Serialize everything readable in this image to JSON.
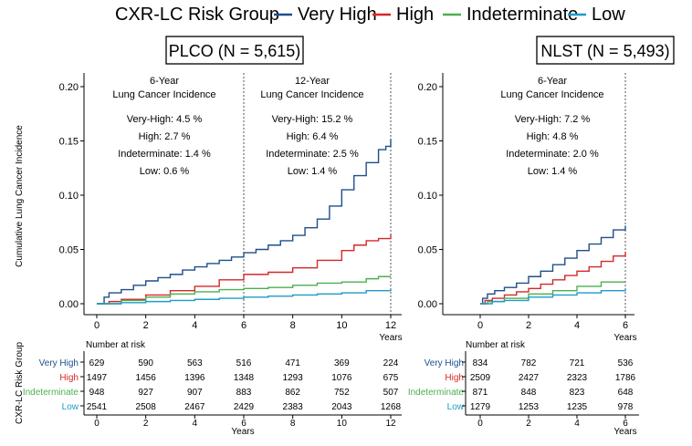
{
  "legend": {
    "title": "CXR-LC Risk Group",
    "items": [
      {
        "label": "Very High",
        "color": "#1f4e8c"
      },
      {
        "label": "High",
        "color": "#d62728"
      },
      {
        "label": "Indeterminate",
        "color": "#4caf50"
      },
      {
        "label": "Low",
        "color": "#1f9bc8"
      }
    ]
  },
  "y_axis_label": "Cumulative Lung Cancer Incidence",
  "risk_axis_label": "CXR-LC Risk Group",
  "number_at_risk_label": "Number at risk",
  "years_label": "Years",
  "panels": [
    {
      "title": "PLCO (N = 5,615)",
      "annotations": [
        {
          "header": [
            "6-Year",
            "Lung Cancer Incidence"
          ],
          "lines": [
            "Very-High: 4.5 %",
            "High: 2.7 %",
            "Indeterminate: 1.4 %",
            "Low: 0.6 %"
          ]
        },
        {
          "header": [
            "12-Year",
            "Lung Cancer Incidence"
          ],
          "lines": [
            "Very-High: 15.2 %",
            "High: 6.4 %",
            "Indeterminate: 2.5 %",
            "Low: 1.4 %"
          ]
        }
      ],
      "risk_table": {
        "times": [
          0,
          2,
          4,
          6,
          8,
          10,
          12
        ],
        "rows": [
          {
            "group": "Very High",
            "counts": [
              629,
              590,
              563,
              516,
              471,
              369,
              224
            ]
          },
          {
            "group": "High",
            "counts": [
              1497,
              1456,
              1396,
              1348,
              1293,
              1076,
              675
            ]
          },
          {
            "group": "Indeterminate",
            "counts": [
              948,
              927,
              907,
              883,
              862,
              752,
              507
            ]
          },
          {
            "group": "Low",
            "counts": [
              2541,
              2508,
              2467,
              2429,
              2383,
              2043,
              1268
            ]
          }
        ]
      }
    },
    {
      "title": "NLST (N = 5,493)",
      "annotations": [
        {
          "header": [
            "6-Year",
            "Lung Cancer Incidence"
          ],
          "lines": [
            "Very-High: 7.2 %",
            "High: 4.8 %",
            "Indeterminate: 2.0 %",
            "Low: 1.4 %"
          ]
        }
      ],
      "risk_table": {
        "times": [
          0,
          2,
          4,
          6
        ],
        "rows": [
          {
            "group": "Very High",
            "counts": [
              834,
              782,
              721,
              536
            ]
          },
          {
            "group": "High",
            "counts": [
              2509,
              2427,
              2323,
              1786
            ]
          },
          {
            "group": "Indeterminate",
            "counts": [
              871,
              848,
              823,
              648
            ]
          },
          {
            "group": "Low",
            "counts": [
              1279,
              1253,
              1235,
              978
            ]
          }
        ]
      }
    }
  ],
  "chart_data": [
    {
      "type": "line",
      "title": "PLCO (N = 5,615)",
      "xlabel": "Years",
      "ylabel": "Cumulative Lung Cancer Incidence",
      "xlim": [
        0,
        12
      ],
      "ylim": [
        0,
        0.2
      ],
      "x_ticks": [
        0,
        2,
        4,
        6,
        8,
        10,
        12
      ],
      "y_ticks": [
        "0.00",
        "0.05",
        "0.10",
        "0.15",
        "0.20"
      ],
      "vertical_reference_lines": [
        6,
        12
      ],
      "series": [
        {
          "name": "Very High",
          "color": "#1f4e8c",
          "x": [
            0,
            0.3,
            0.5,
            1,
            1.5,
            2,
            2.5,
            3,
            3.5,
            4,
            4.5,
            5,
            5.5,
            6,
            6.5,
            7,
            7.5,
            8,
            8.5,
            9,
            9.5,
            10,
            10.5,
            11,
            11.5,
            11.8,
            12
          ],
          "y": [
            0,
            0.006,
            0.01,
            0.013,
            0.017,
            0.021,
            0.024,
            0.027,
            0.031,
            0.034,
            0.037,
            0.04,
            0.043,
            0.047,
            0.05,
            0.054,
            0.058,
            0.063,
            0.07,
            0.078,
            0.09,
            0.105,
            0.118,
            0.13,
            0.142,
            0.145,
            0.152
          ]
        },
        {
          "name": "High",
          "color": "#d62728",
          "x": [
            0,
            0.5,
            1,
            2,
            3,
            4,
            5,
            6,
            7,
            8,
            9,
            10,
            10.5,
            11,
            11.5,
            12
          ],
          "y": [
            0,
            0.002,
            0.004,
            0.008,
            0.012,
            0.016,
            0.022,
            0.027,
            0.029,
            0.033,
            0.04,
            0.049,
            0.054,
            0.058,
            0.06,
            0.064
          ]
        },
        {
          "name": "Indeterminate",
          "color": "#4caf50",
          "x": [
            0,
            1,
            2,
            3,
            4,
            5,
            6,
            7,
            8,
            9,
            10,
            11,
            11.5,
            12
          ],
          "y": [
            0,
            0.003,
            0.006,
            0.009,
            0.011,
            0.013,
            0.014,
            0.015,
            0.017,
            0.019,
            0.02,
            0.023,
            0.025,
            0.025
          ]
        },
        {
          "name": "Low",
          "color": "#1f9bc8",
          "x": [
            0,
            1,
            2,
            3,
            4,
            5,
            6,
            7,
            8,
            9,
            10,
            11,
            12
          ],
          "y": [
            0,
            0.001,
            0.002,
            0.003,
            0.004,
            0.005,
            0.006,
            0.007,
            0.008,
            0.009,
            0.01,
            0.012,
            0.014
          ]
        }
      ]
    },
    {
      "type": "line",
      "title": "NLST (N = 5,493)",
      "xlabel": "Years",
      "ylabel": "",
      "xlim": [
        0,
        6
      ],
      "ylim": [
        0,
        0.2
      ],
      "x_ticks": [
        0,
        2,
        4,
        6
      ],
      "y_ticks": [
        "0.00",
        "0.05",
        "0.10",
        "0.15",
        "0.20"
      ],
      "vertical_reference_lines": [
        6
      ],
      "series": [
        {
          "name": "Very High",
          "color": "#1f4e8c",
          "x": [
            0,
            0.1,
            0.3,
            0.6,
            1,
            1.5,
            2,
            2.5,
            3,
            3.5,
            4,
            4.5,
            5,
            5.5,
            6
          ],
          "y": [
            0,
            0.005,
            0.009,
            0.012,
            0.015,
            0.019,
            0.025,
            0.03,
            0.036,
            0.042,
            0.049,
            0.055,
            0.061,
            0.068,
            0.072
          ]
        },
        {
          "name": "High",
          "color": "#d62728",
          "x": [
            0,
            0.2,
            0.5,
            1,
            1.5,
            2,
            2.5,
            3,
            3.5,
            4,
            4.5,
            5,
            5.5,
            6
          ],
          "y": [
            0,
            0.003,
            0.005,
            0.008,
            0.011,
            0.014,
            0.018,
            0.022,
            0.026,
            0.03,
            0.034,
            0.039,
            0.044,
            0.048
          ]
        },
        {
          "name": "Indeterminate",
          "color": "#4caf50",
          "x": [
            0,
            0.3,
            1,
            2,
            3,
            4,
            5,
            6
          ],
          "y": [
            0,
            0.002,
            0.005,
            0.009,
            0.012,
            0.016,
            0.02,
            0.02
          ]
        },
        {
          "name": "Low",
          "color": "#1f9bc8",
          "x": [
            0,
            0.5,
            1,
            2,
            3,
            4,
            5,
            6
          ],
          "y": [
            0,
            0.002,
            0.003,
            0.006,
            0.008,
            0.01,
            0.012,
            0.014
          ]
        }
      ]
    }
  ]
}
